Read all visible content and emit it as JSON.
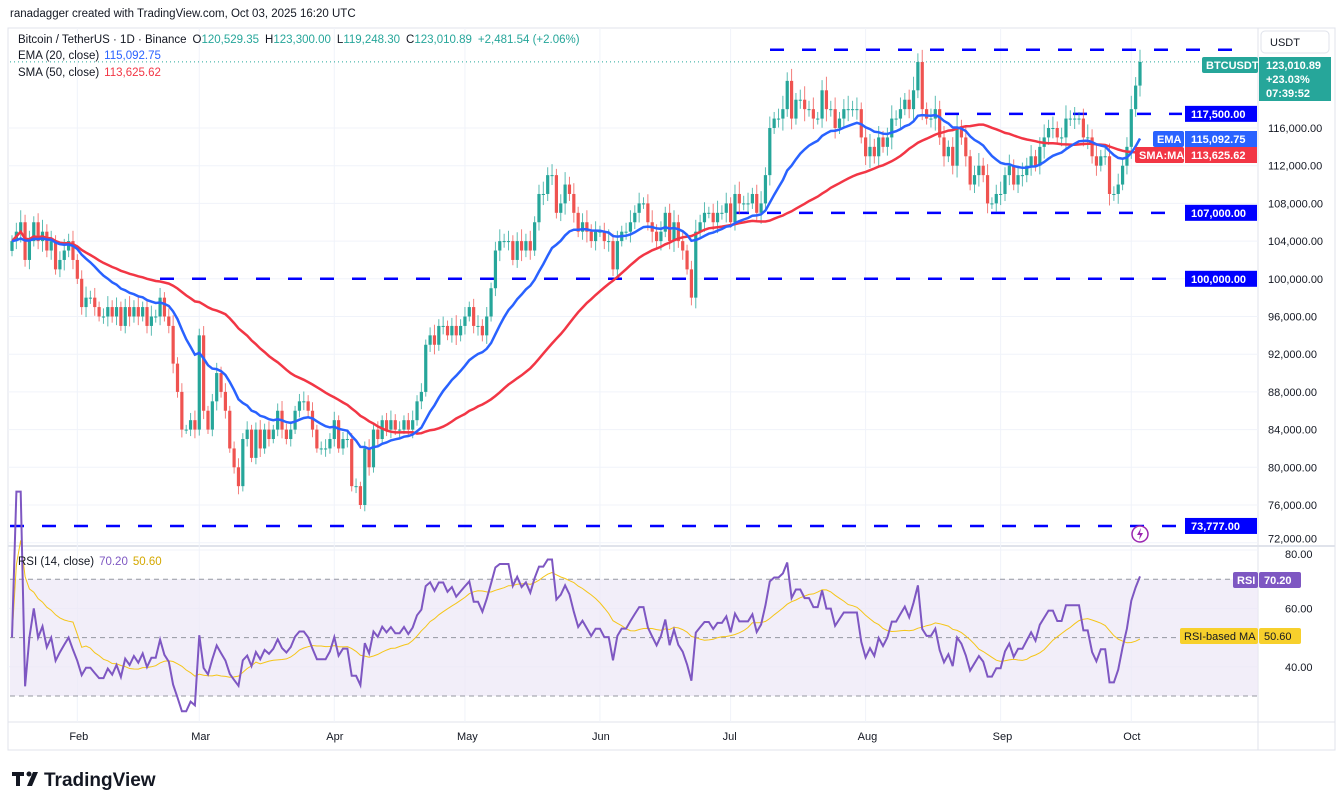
{
  "header": {
    "credit": "ranadagger created with TradingView.com, Oct 03, 2025 16:20 UTC",
    "symbol": "Bitcoin / TetherUS · 1D · Binance",
    "open_prefix": "O",
    "open": "120,529.35",
    "high_prefix": "H",
    "high": "123,300.00",
    "low_prefix": "L",
    "low": "119,248.30",
    "close_prefix": "C",
    "close": "123,010.89",
    "change": "+2,481.54 (+2.06%)",
    "ema_label": "EMA (20, close)",
    "ema_value": "115,092.75",
    "sma_label": "SMA (50, close)",
    "sma_value": "113,625.62"
  },
  "price_axis": {
    "currency": "USDT",
    "ticks": [
      "72,000.00",
      "76,000.00",
      "80,000.00",
      "84,000.00",
      "88,000.00",
      "92,000.00",
      "96,000.00",
      "100,000.00",
      "104,000.00",
      "108,000.00",
      "112,000.00",
      "116,000.00"
    ],
    "last_price": {
      "symbol": "BTCUSDT",
      "price": "123,010.89",
      "change_pct": "+23.03%",
      "countdown": "07:39:52"
    },
    "ema_tag": {
      "name": "EMA",
      "value": "115,092.75"
    },
    "sma_tag": {
      "name": "SMA:MA",
      "value": "113,625.62"
    }
  },
  "levels": [
    {
      "value": 124300,
      "label": ""
    },
    {
      "value": 117500,
      "label": "117,500.00"
    },
    {
      "value": 107000,
      "label": "107,000.00"
    },
    {
      "value": 100000,
      "label": "100,000.00"
    },
    {
      "value": 73777,
      "label": "73,777.00"
    }
  ],
  "rsi": {
    "label": "RSI (14, close)",
    "value": "70.20",
    "ma_value": "50.60",
    "tag_rsi": "RSI",
    "tag_ma": "RSI-based MA",
    "ticks": [
      "80.00",
      "60.00",
      "40.00"
    ]
  },
  "time_axis": [
    "Feb",
    "Mar",
    "Apr",
    "May",
    "Jun",
    "Jul",
    "Aug",
    "Sep",
    "Oct"
  ],
  "brand": "TradingView",
  "colors": {
    "up": "#26a69a",
    "down": "#ef5350",
    "ema": "#2962ff",
    "sma": "#f23645",
    "level": "#0000ff",
    "rsi": "#7e57c2",
    "rsi_ma": "#f5c518",
    "rsi_band": "#ede7f6"
  },
  "chart_data": {
    "type": "candlestick",
    "interval": "1D",
    "start_date": "2025-01-17",
    "end_date": "2025-10-03",
    "ylim": [
      72000,
      126000
    ],
    "indicators": [
      "EMA 20",
      "SMA 50",
      "RSI 14",
      "RSI-based MA 14"
    ],
    "closes_thousands": [
      104,
      105,
      106,
      102,
      104,
      106,
      104,
      105,
      103,
      104,
      101,
      102,
      103,
      104,
      102,
      100,
      97,
      98,
      98,
      97,
      96,
      96,
      97,
      96,
      97,
      95,
      97,
      96,
      97,
      96,
      97,
      95,
      96,
      96,
      98,
      96,
      95,
      91,
      88,
      84,
      84,
      85,
      84,
      94,
      86,
      84,
      87,
      90,
      88,
      86,
      82,
      80,
      78,
      83,
      84,
      81,
      84,
      82,
      84,
      83,
      84,
      86,
      84,
      83,
      84,
      86,
      87,
      87,
      86,
      84,
      82,
      82,
      82,
      83,
      85,
      82,
      83,
      83,
      78,
      78,
      76,
      82,
      80,
      84,
      83,
      85,
      84,
      85,
      84,
      84,
      85,
      84,
      85,
      87,
      88,
      93,
      94,
      93,
      95,
      95,
      94,
      95,
      94,
      95,
      96,
      97,
      95,
      95,
      94,
      96,
      99,
      103,
      104,
      104,
      104,
      102,
      104,
      103,
      104,
      103,
      106,
      109,
      109,
      111,
      111,
      107,
      108,
      110,
      109,
      107,
      105,
      106,
      105,
      104,
      105,
      105,
      104,
      104,
      101,
      104,
      105,
      105,
      106,
      107,
      108,
      108,
      106,
      105,
      104,
      105,
      107,
      104,
      106,
      104,
      103,
      101,
      98,
      105,
      106,
      107,
      107,
      106,
      107,
      107,
      108,
      106,
      109,
      108,
      108,
      108,
      109,
      107,
      108,
      111,
      116,
      117,
      117,
      118,
      121,
      117,
      119,
      119,
      118,
      118,
      117,
      117,
      120,
      118,
      118,
      116,
      117,
      118,
      118,
      118,
      118,
      115,
      113,
      114,
      113,
      115,
      114,
      115,
      117,
      117,
      118,
      119,
      118,
      120,
      123,
      118,
      117,
      117,
      118,
      115,
      113,
      114,
      112,
      116,
      115,
      113,
      110,
      111,
      112,
      111,
      108,
      108,
      109,
      109,
      111,
      112,
      110,
      111,
      111,
      112,
      113,
      112,
      114,
      115,
      116,
      116,
      115,
      115,
      117,
      117,
      117,
      117,
      115,
      115,
      113,
      112,
      113,
      113,
      109,
      109,
      110,
      112,
      114,
      118,
      120.5,
      123.01
    ]
  }
}
